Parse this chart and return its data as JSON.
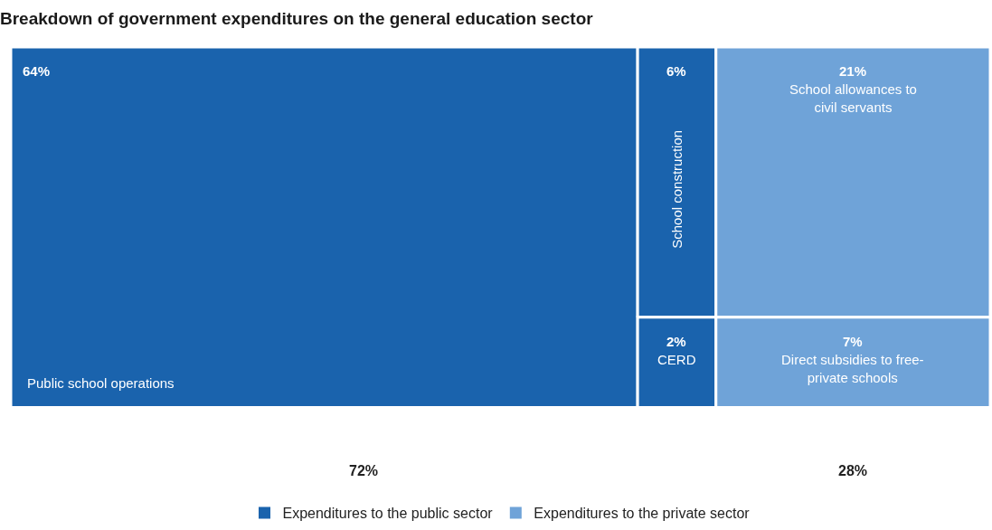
{
  "chart_data": {
    "type": "other",
    "title": "Breakdown of government expenditures on the general education sector",
    "categories": [
      "Public school operations",
      "School construction",
      "CERD",
      "School allowances to civil servants",
      "Direct subsidies to free-private schools"
    ],
    "series": [
      {
        "name": "Expenditures to the public sector",
        "color": "#1a63ad",
        "values": [
          64,
          6,
          2,
          null,
          null
        ],
        "value_labels": [
          "64%",
          "6%",
          "2%",
          null,
          null
        ]
      },
      {
        "name": "Expenditures to the private sector",
        "color": "#6fa3d8",
        "values": [
          null,
          null,
          null,
          21,
          7
        ],
        "value_labels": [
          null,
          null,
          null,
          "21%",
          "7%"
        ]
      }
    ],
    "totals": [
      "72%",
      "28%"
    ],
    "legend": "bottom"
  }
}
